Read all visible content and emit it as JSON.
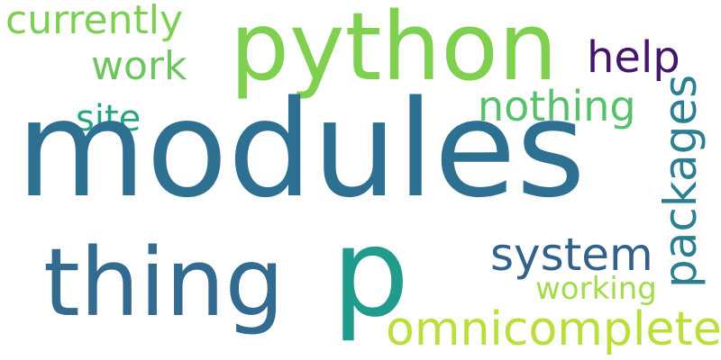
{
  "words": {
    "modules": {
      "text": "modules",
      "color": "#2e7092"
    },
    "python": {
      "text": "python",
      "color": "#7ed04e"
    },
    "thing": {
      "text": "thing",
      "color": "#336a8f"
    },
    "p": {
      "text": "p",
      "color": "#209b8c"
    },
    "omnicomplete": {
      "text": "omnicomplete",
      "color": "#b9e03a"
    },
    "system": {
      "text": "system",
      "color": "#32618c"
    },
    "working": {
      "text": "working",
      "color": "#a3dc4a"
    },
    "nothing": {
      "text": "nothing",
      "color": "#57c06a"
    },
    "help": {
      "text": "help",
      "color": "#44166b"
    },
    "work": {
      "text": "work",
      "color": "#6cc65d"
    },
    "site": {
      "text": "site",
      "color": "#23a583"
    },
    "currently": {
      "text": "currently",
      "color": "#7ccf52"
    },
    "packages": {
      "text": "packages",
      "color": "#2b7f91"
    }
  }
}
